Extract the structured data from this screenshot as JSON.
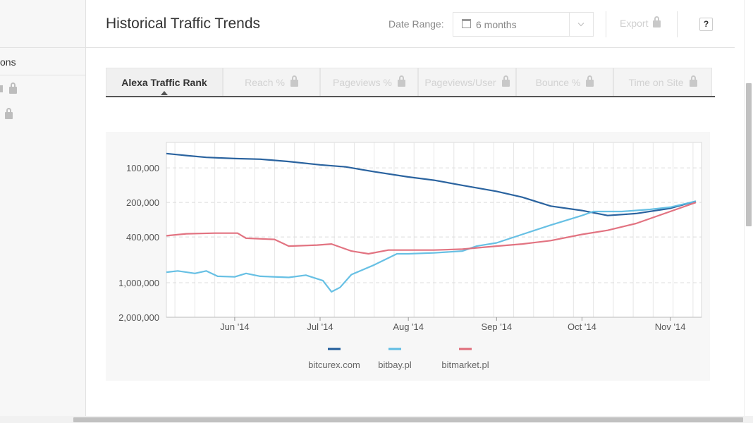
{
  "sidebar": {
    "section_label": "ons"
  },
  "header": {
    "title": "Historical Traffic Trends",
    "date_range_label": "Date Range:",
    "date_range_value": "6 months",
    "export_label": "Export",
    "help_label": "?"
  },
  "tabs": [
    {
      "label": "Alexa Traffic Rank",
      "active": true,
      "locked": false
    },
    {
      "label": "Reach %",
      "active": false,
      "locked": true
    },
    {
      "label": "Pageviews %",
      "active": false,
      "locked": true
    },
    {
      "label": "Pageviews/User",
      "active": false,
      "locked": true
    },
    {
      "label": "Bounce %",
      "active": false,
      "locked": true
    },
    {
      "label": "Time on Site",
      "active": false,
      "locked": true
    }
  ],
  "chart_data": {
    "type": "line",
    "title": "",
    "xlabel": "",
    "ylabel": "",
    "y_scale": "log",
    "y_reversed": true,
    "ylim": [
      60000,
      2000000
    ],
    "xlim": [
      "2014-05-08",
      "2014-11-12"
    ],
    "y_ticks": [
      100000,
      200000,
      400000,
      1000000,
      2000000
    ],
    "y_tick_labels": [
      "100,000",
      "200,000",
      "400,000",
      "1,000,000",
      "2,000,000"
    ],
    "x_ticks": [
      "2014-06-01",
      "2014-07-01",
      "2014-08-01",
      "2014-09-01",
      "2014-10-01",
      "2014-11-01"
    ],
    "x_tick_labels": [
      "Jun '14",
      "Jul '14",
      "Aug '14",
      "Sep '14",
      "Oct '14",
      "Nov '14"
    ],
    "grid": true,
    "legend_position": "bottom",
    "series": [
      {
        "name": "bitcurex.com",
        "color": "#1f5b9a",
        "points": [
          [
            "2014-05-08",
            75000
          ],
          [
            "2014-05-15",
            78000
          ],
          [
            "2014-05-22",
            81000
          ],
          [
            "2014-06-01",
            83000
          ],
          [
            "2014-06-10",
            84000
          ],
          [
            "2014-06-20",
            88000
          ],
          [
            "2014-07-01",
            94000
          ],
          [
            "2014-07-10",
            98000
          ],
          [
            "2014-07-20",
            108000
          ],
          [
            "2014-08-01",
            120000
          ],
          [
            "2014-08-10",
            128000
          ],
          [
            "2014-08-20",
            142000
          ],
          [
            "2014-09-01",
            160000
          ],
          [
            "2014-09-10",
            180000
          ],
          [
            "2014-09-20",
            215000
          ],
          [
            "2014-10-01",
            235000
          ],
          [
            "2014-10-10",
            260000
          ],
          [
            "2014-10-20",
            250000
          ],
          [
            "2014-11-01",
            225000
          ],
          [
            "2014-11-10",
            195000
          ]
        ]
      },
      {
        "name": "bitbay.pl",
        "color": "#5fbde3",
        "points": [
          [
            "2014-05-08",
            810000
          ],
          [
            "2014-05-12",
            790000
          ],
          [
            "2014-05-18",
            830000
          ],
          [
            "2014-05-22",
            790000
          ],
          [
            "2014-05-26",
            880000
          ],
          [
            "2014-06-01",
            890000
          ],
          [
            "2014-06-05",
            830000
          ],
          [
            "2014-06-10",
            880000
          ],
          [
            "2014-06-20",
            900000
          ],
          [
            "2014-06-26",
            860000
          ],
          [
            "2014-07-02",
            960000
          ],
          [
            "2014-07-05",
            1200000
          ],
          [
            "2014-07-08",
            1100000
          ],
          [
            "2014-07-12",
            850000
          ],
          [
            "2014-07-20",
            700000
          ],
          [
            "2014-07-28",
            560000
          ],
          [
            "2014-08-01",
            560000
          ],
          [
            "2014-08-10",
            550000
          ],
          [
            "2014-08-20",
            530000
          ],
          [
            "2014-08-25",
            480000
          ],
          [
            "2014-09-01",
            450000
          ],
          [
            "2014-09-10",
            380000
          ],
          [
            "2014-09-20",
            315000
          ],
          [
            "2014-10-01",
            260000
          ],
          [
            "2014-10-05",
            240000
          ],
          [
            "2014-10-15",
            240000
          ],
          [
            "2014-10-25",
            230000
          ],
          [
            "2014-11-01",
            220000
          ],
          [
            "2014-11-10",
            195000
          ]
        ]
      },
      {
        "name": "bitmarket.pl",
        "color": "#e06c7a",
        "points": [
          [
            "2014-05-08",
            390000
          ],
          [
            "2014-05-15",
            375000
          ],
          [
            "2014-05-25",
            370000
          ],
          [
            "2014-06-02",
            370000
          ],
          [
            "2014-06-05",
            410000
          ],
          [
            "2014-06-15",
            420000
          ],
          [
            "2014-06-20",
            480000
          ],
          [
            "2014-06-30",
            470000
          ],
          [
            "2014-07-05",
            460000
          ],
          [
            "2014-07-12",
            530000
          ],
          [
            "2014-07-18",
            560000
          ],
          [
            "2014-07-25",
            520000
          ],
          [
            "2014-08-01",
            520000
          ],
          [
            "2014-08-10",
            520000
          ],
          [
            "2014-08-20",
            510000
          ],
          [
            "2014-09-01",
            480000
          ],
          [
            "2014-09-10",
            460000
          ],
          [
            "2014-09-20",
            430000
          ],
          [
            "2014-10-01",
            380000
          ],
          [
            "2014-10-10",
            350000
          ],
          [
            "2014-10-20",
            305000
          ],
          [
            "2014-11-01",
            240000
          ],
          [
            "2014-11-10",
            200000
          ]
        ]
      }
    ]
  }
}
